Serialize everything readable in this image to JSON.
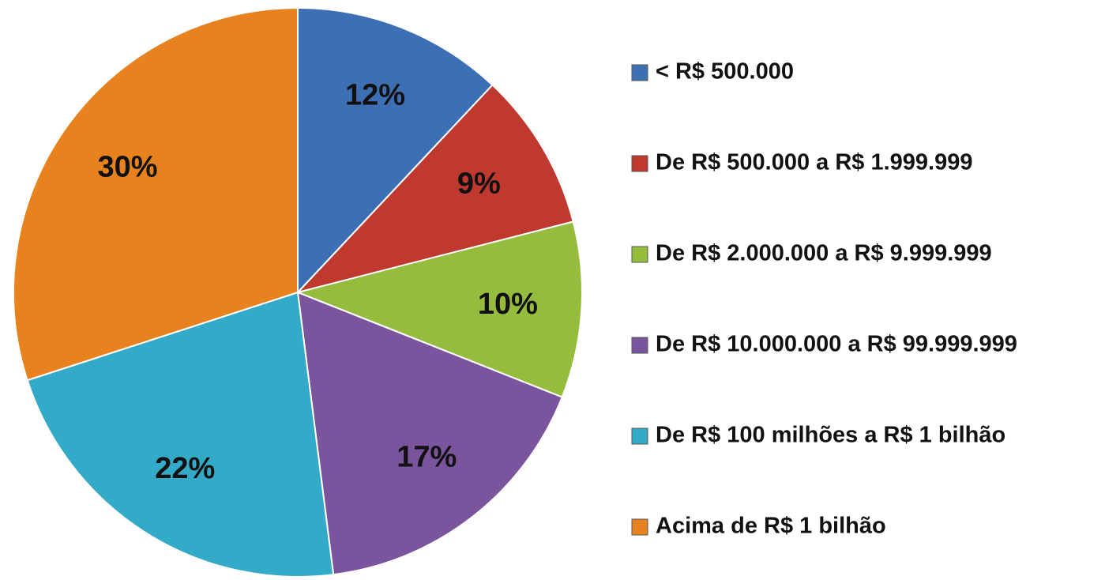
{
  "chart_data": {
    "type": "pie",
    "categories": [
      "< R$ 500.000",
      "De R$ 500.000 a R$ 1.999.999",
      "De R$ 2.000.000 a R$ 9.999.999",
      "De R$ 10.000.000 a R$ 99.999.999",
      "De R$ 100 milhões a R$ 1 bilhão",
      "Acima de R$ 1 bilhão"
    ],
    "values": [
      12,
      9,
      10,
      17,
      22,
      30
    ],
    "value_labels": [
      "12%",
      "9%",
      "10%",
      "17%",
      "22%",
      "30%"
    ],
    "colors": [
      "#3d6fb5",
      "#c0392f",
      "#96bc3e",
      "#7a559e",
      "#32aac8",
      "#e8821e"
    ],
    "legend": "right"
  }
}
